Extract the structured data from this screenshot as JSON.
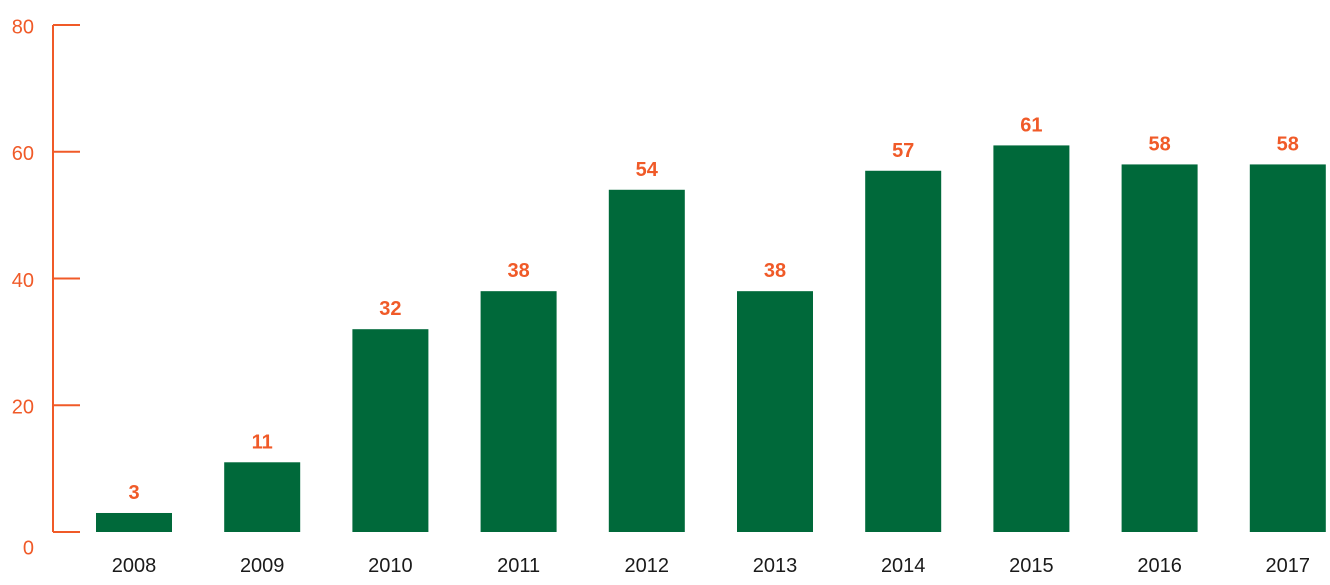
{
  "chart_data": {
    "type": "bar",
    "title": "",
    "xlabel": "",
    "ylabel": "",
    "categories": [
      "2008",
      "2009",
      "2010",
      "2011",
      "2012",
      "2013",
      "2014",
      "2015",
      "2016",
      "2017"
    ],
    "values": [
      3,
      11,
      32,
      38,
      54,
      38,
      57,
      61,
      58,
      58
    ],
    "data_labels": [
      "3",
      "11",
      "32",
      "38",
      "54",
      "38",
      "57",
      "61",
      "58",
      "58"
    ],
    "ylim": [
      0,
      80
    ],
    "yticks": [
      0,
      20,
      40,
      60,
      80
    ],
    "ytick_labels": [
      "0",
      "20",
      "40",
      "60",
      "80"
    ],
    "grid": false,
    "legend": "none",
    "colors": {
      "bar": "#00693a",
      "axis": "#f05a28",
      "data_label": "#f05a28",
      "tick_label": "#f05a28",
      "category_label": "#1a1a1a"
    }
  }
}
